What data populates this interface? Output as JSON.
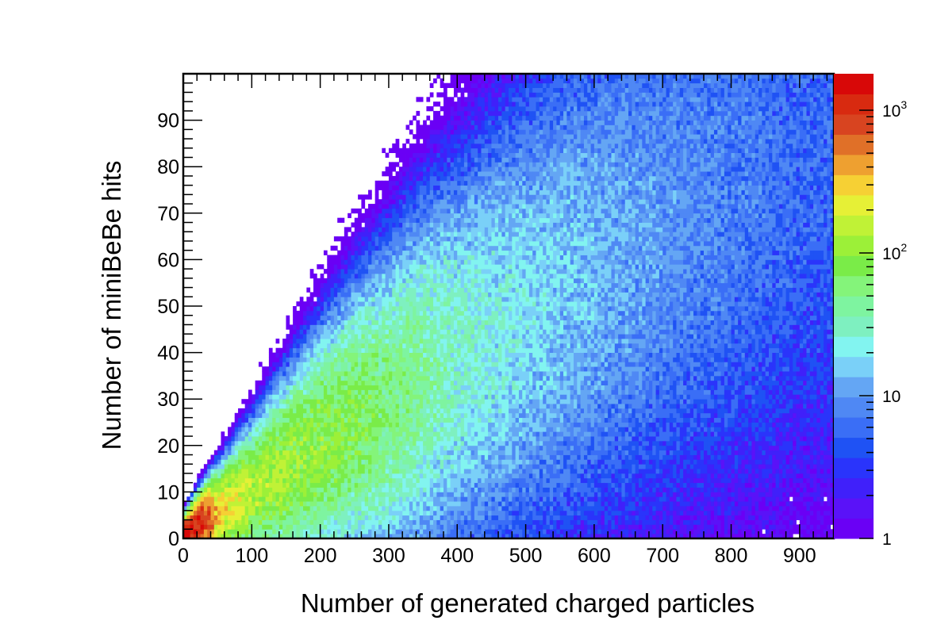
{
  "chart_data": {
    "type": "heatmap",
    "title": "",
    "xlabel": "Number of generated charged particles",
    "ylabel": "Number of miniBeBe hits",
    "xlim": [
      0,
      950
    ],
    "ylim": [
      0,
      100
    ],
    "x_ticks": [
      "0",
      "100",
      "200",
      "300",
      "400",
      "500",
      "600",
      "700",
      "800",
      "900"
    ],
    "y_ticks": [
      "0",
      "10",
      "20",
      "30",
      "40",
      "50",
      "60",
      "70",
      "80",
      "90"
    ],
    "z_scale": "log",
    "zlim": [
      1,
      1800
    ],
    "z_tick_labels": [
      {
        "value": 1,
        "base": "1",
        "exp": ""
      },
      {
        "value": 10,
        "base": "10",
        "exp": ""
      },
      {
        "value": 100,
        "base": "10",
        "exp": "2"
      },
      {
        "value": 1000,
        "base": "10",
        "exp": "3"
      }
    ],
    "grid": false,
    "distribution": {
      "description_of_band": "linear correlation band",
      "mean_y_at_x": [
        [
          0,
          1
        ],
        [
          100,
          10
        ],
        [
          200,
          20
        ],
        [
          300,
          29
        ],
        [
          400,
          39
        ],
        [
          500,
          48
        ],
        [
          600,
          58
        ],
        [
          700,
          67
        ],
        [
          800,
          76
        ],
        [
          900,
          85
        ],
        [
          950,
          90
        ]
      ],
      "peak_region": {
        "x": [
          10,
          40
        ],
        "y": [
          0,
          4
        ],
        "counts": 1500
      },
      "count_at_x": [
        [
          20,
          1500
        ],
        [
          50,
          300
        ],
        [
          100,
          150
        ],
        [
          200,
          100
        ],
        [
          300,
          60
        ],
        [
          400,
          30
        ],
        [
          500,
          20
        ],
        [
          600,
          14
        ],
        [
          700,
          10
        ],
        [
          800,
          8
        ],
        [
          900,
          6
        ]
      ]
    },
    "palette": [
      "#6a00f5",
      "#5a12f8",
      "#4020fa",
      "#2a34fb",
      "#1f52f4",
      "#3a6ef6",
      "#4f88f4",
      "#64a6f4",
      "#7ad0f8",
      "#82f4f0",
      "#7ef0c0",
      "#7ef4a0",
      "#84f47a",
      "#7aec48",
      "#9cf038",
      "#c0f236",
      "#e6f036",
      "#f6d034",
      "#eea030",
      "#e07028",
      "#d84420",
      "#d82a10",
      "#d80808"
    ]
  }
}
